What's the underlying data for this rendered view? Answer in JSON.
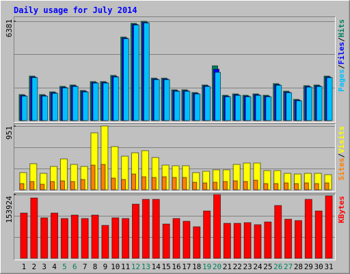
{
  "chart_data": {
    "type": "bar",
    "title": "Daily usage for July 2014",
    "categories": [
      "1",
      "2",
      "3",
      "4",
      "5",
      "6",
      "7",
      "8",
      "9",
      "10",
      "11",
      "12",
      "13",
      "14",
      "15",
      "16",
      "17",
      "18",
      "19",
      "20",
      "21",
      "22",
      "23",
      "24",
      "25",
      "26",
      "27",
      "28",
      "29",
      "30",
      "31"
    ],
    "highlighted_categories": [
      "5",
      "6",
      "12",
      "13",
      "19",
      "20",
      "26",
      "27"
    ],
    "highlight_color": "#00805c",
    "legend_separator": "/",
    "panels": [
      {
        "ylim": [
          0,
          6381
        ],
        "yticks": [
          6381
        ],
        "series": [
          {
            "name": "Hits",
            "color": "#00805c",
            "values": [
              1672,
              2860,
              1672,
              1848,
              2200,
              2288,
              1936,
              2508,
              2508,
              2904,
              5369,
              6249,
              6381,
              2728,
              2728,
              1980,
              1980,
              1804,
              2288,
              3520,
              1628,
              1716,
              1628,
              1716,
              1628,
              2376,
              1892,
              1364,
              2244,
              2288,
              2860
            ]
          },
          {
            "name": "Files",
            "color": "#0000ff",
            "values": [
              1610,
              2800,
              1610,
              1790,
              2140,
              2230,
              1880,
              2450,
              2450,
              2840,
              5300,
              6180,
              6310,
              2670,
              2670,
              1920,
              1920,
              1750,
              2230,
              3300,
              1570,
              1660,
              1570,
              1660,
              1570,
              2310,
              1830,
              1310,
              2190,
              2230,
              2800
            ]
          },
          {
            "name": "Pages",
            "color": "#00c0ff",
            "values": [
              1570,
              2760,
              1570,
              1750,
              2100,
              2190,
              1840,
              2410,
              2410,
              2800,
              5260,
              6140,
              6270,
              2630,
              2630,
              1880,
              1880,
              1710,
              2190,
              3100,
              1530,
              1620,
              1530,
              1620,
              1530,
              2270,
              1790,
              1270,
              2150,
              2190,
              2760
            ]
          }
        ]
      },
      {
        "ylim": [
          0,
          951
        ],
        "yticks": [
          951
        ],
        "series": [
          {
            "name": "Visits",
            "color": "#ffff00",
            "values": [
              256,
              389,
              245,
              348,
              460,
              378,
              348,
              849,
              951,
              644,
              501,
              552,
              583,
              481,
              368,
              358,
              358,
              256,
              276,
              297,
              297,
              378,
              399,
              399,
              286,
              286,
              245,
              235,
              245,
              245,
              225
            ]
          },
          {
            "name": "Sites",
            "color": "#ff8000",
            "values": [
              92,
              123,
              82,
              123,
              133,
              123,
              153,
              368,
              378,
              174,
              153,
              235,
              194,
              184,
              194,
              184,
              184,
              112,
              102,
              112,
              123,
              133,
              123,
              143,
              92,
              92,
              102,
              92,
              102,
              92,
              102
            ]
          }
        ]
      },
      {
        "ylim": [
          0,
          153924
        ],
        "yticks": [
          153924
        ],
        "series": [
          {
            "name": "KBytes",
            "color": "#ff0000",
            "values": [
              109236,
              145649,
              97651,
              109236,
              95996,
              104272,
              95996,
              104272,
              79445,
              97651,
              95996,
              130751,
              142337,
              142337,
              82755,
              95996,
              89375,
              76135,
              114201,
              153924,
              84410,
              84410,
              86065,
              81100,
              87720,
              127441,
              94341,
              91031,
              142337,
              114201,
              150614
            ]
          }
        ]
      }
    ]
  }
}
